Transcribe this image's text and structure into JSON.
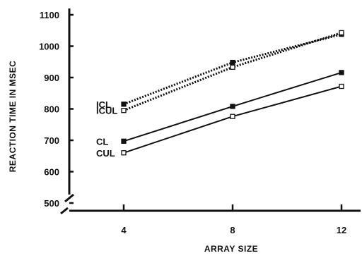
{
  "chart_data": {
    "type": "line",
    "title": "",
    "xlabel": "ARRAY SIZE",
    "ylabel": "REACTION TIME IN MSEC",
    "x": [
      4,
      8,
      12
    ],
    "xticks": [
      "4",
      "8",
      "12"
    ],
    "yticks": [
      "500",
      "600",
      "700",
      "800",
      "900",
      "1000",
      "1100"
    ],
    "xlim": [
      1.5,
      12.8
    ],
    "ylim": [
      455,
      1195
    ],
    "grid": false,
    "legend": "none",
    "series": [
      {
        "name": "ICL",
        "values": [
          815,
          948,
          1038
        ],
        "marker": "filled",
        "line": "dotted"
      },
      {
        "name": "ICUL",
        "values": [
          795,
          933,
          1043
        ],
        "marker": "open",
        "line": "dotted"
      },
      {
        "name": "CL",
        "values": [
          697,
          808,
          916
        ],
        "marker": "filled",
        "line": "solid"
      },
      {
        "name": "CUL",
        "values": [
          660,
          776,
          872
        ],
        "marker": "open",
        "line": "solid"
      }
    ]
  }
}
